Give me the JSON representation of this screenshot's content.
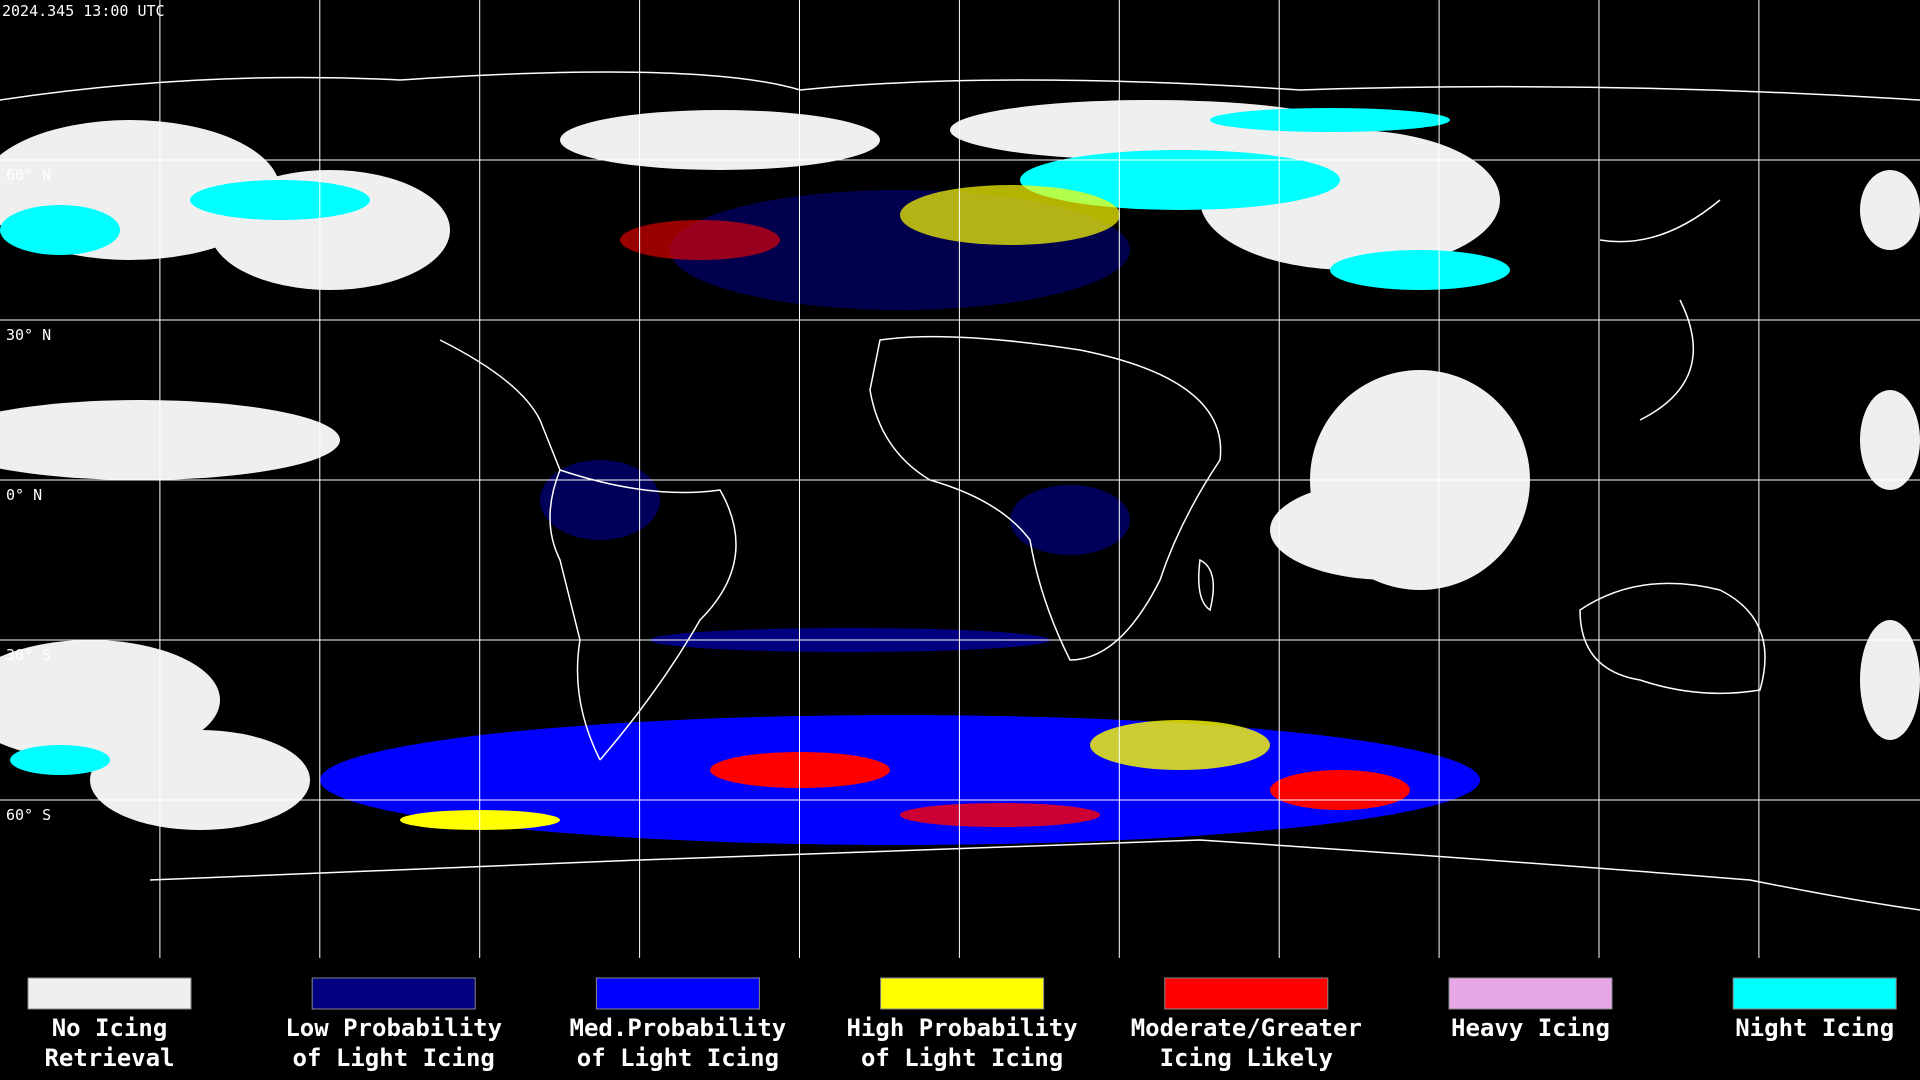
{
  "header": {
    "timestamp": "2024.345 13:00 UTC"
  },
  "map": {
    "latitude_labels": [
      "60° N",
      "30° N",
      "0° N",
      "30° S",
      "60° S"
    ]
  },
  "legend": {
    "items": [
      {
        "color": "#efefef",
        "lines": [
          "No Icing",
          "Retrieval"
        ]
      },
      {
        "color": "#000080",
        "lines": [
          "Low Probability",
          "of Light Icing"
        ]
      },
      {
        "color": "#0000ff",
        "lines": [
          "Med.Probability",
          "of Light Icing"
        ]
      },
      {
        "color": "#ffff00",
        "lines": [
          "High Probability",
          "of Light Icing"
        ]
      },
      {
        "color": "#ff0000",
        "lines": [
          "Moderate/Greater",
          "Icing Likely"
        ]
      },
      {
        "color": "#e8a8e8",
        "lines": [
          "Heavy Icing"
        ]
      },
      {
        "color": "#00ffff",
        "lines": [
          "Night Icing"
        ]
      }
    ]
  }
}
